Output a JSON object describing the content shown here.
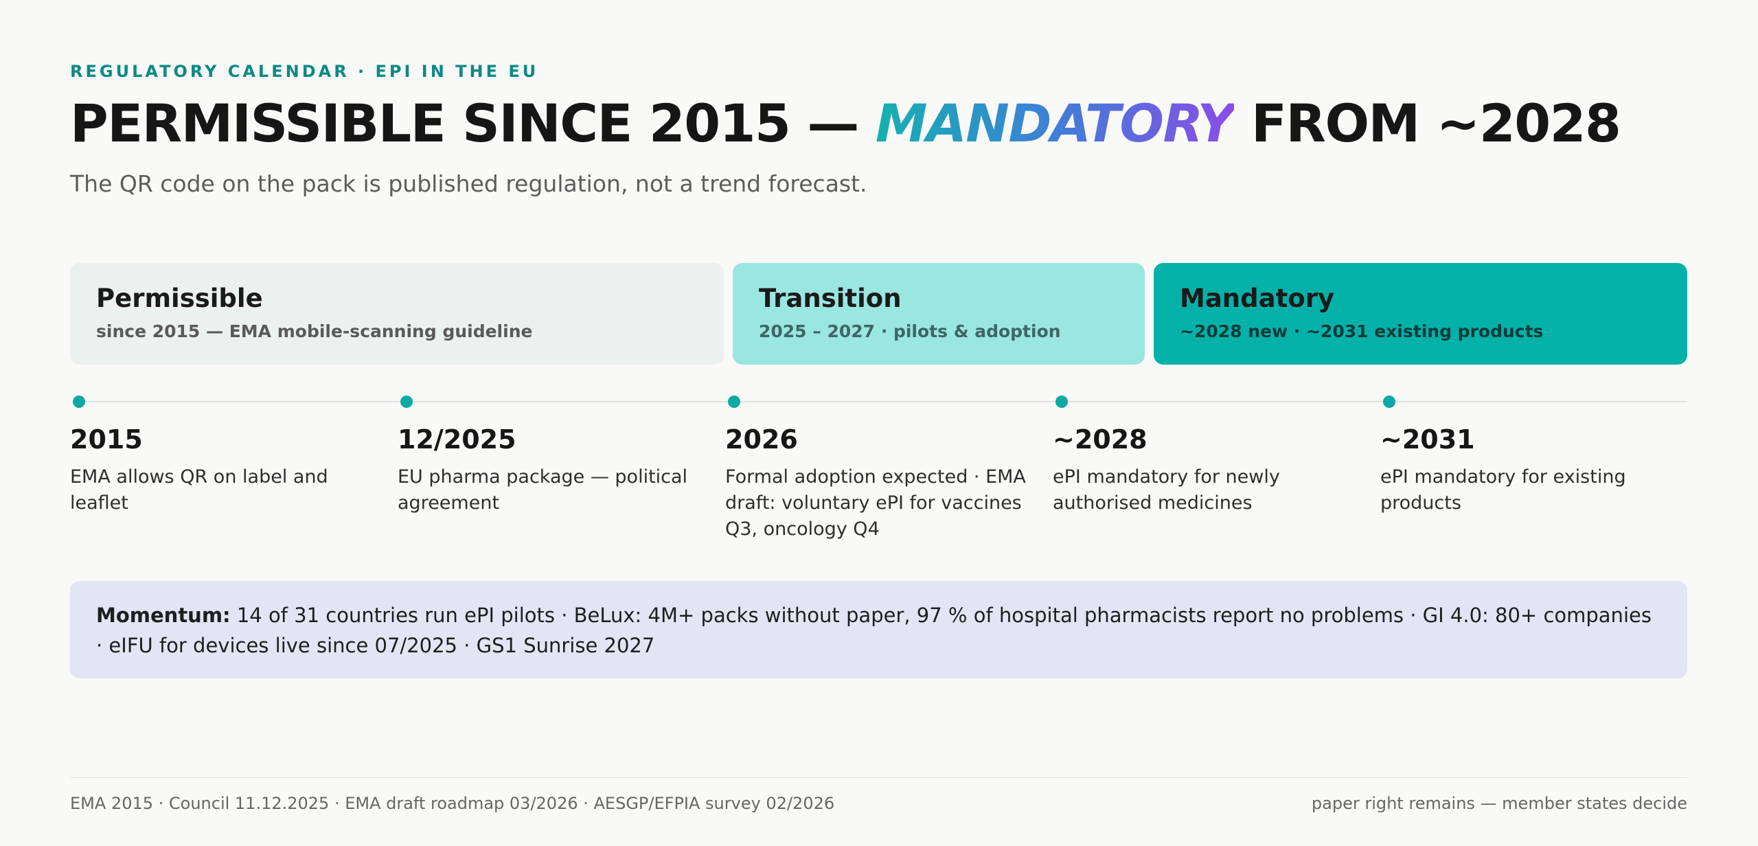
{
  "eyebrow": "REGULATORY CALENDAR · EPI IN THE EU",
  "headline": {
    "part1": "PERMISSIBLE SINCE 2015 — ",
    "accent": "MANDATORY",
    "part2": " FROM ~2028"
  },
  "subtitle": "The QR code on the pack is published regulation, not a trend forecast.",
  "phases": [
    {
      "title": "Permissible",
      "sub": "since 2015 — EMA mobile-scanning guideline"
    },
    {
      "title": "Transition",
      "sub": "2025 – 2027 · pilots & adoption"
    },
    {
      "title": "Mandatory",
      "sub": "~2028 new · ~2031 existing products"
    }
  ],
  "milestones": [
    {
      "year": "2015",
      "text": "EMA allows QR on label and leaflet"
    },
    {
      "year": "12/2025",
      "text": "EU pharma package — political agreement"
    },
    {
      "year": "2026",
      "text": "Formal adoption expected · EMA draft: voluntary ePI for vaccines Q3, oncology Q4"
    },
    {
      "year": "~2028",
      "text": "ePI mandatory for newly authorised medicines"
    },
    {
      "year": "~2031",
      "text": "ePI mandatory for existing products"
    }
  ],
  "momentum": {
    "label": "Momentum:",
    "text": " 14 of 31 countries run ePI pilots · BeLux: 4M+ packs without paper, 97 % of hospital pharmacists report no problems · GI 4.0: 80+ companies · eIFU for devices live since 07/2025 · GS1 Sunrise 2027"
  },
  "footer": {
    "sources": "EMA 2015 · Council 11.12.2025 · EMA draft roadmap 03/2026 · AESGP/EFPIA survey 02/2026",
    "note": "paper right remains — member states decide"
  },
  "colors": {
    "accent": "#0fa9a4",
    "permissible": "#ebf1ef",
    "transition": "#9ae6e1",
    "mandatory": "#04b1a9",
    "momentum_bg": "#e3e5f4"
  }
}
